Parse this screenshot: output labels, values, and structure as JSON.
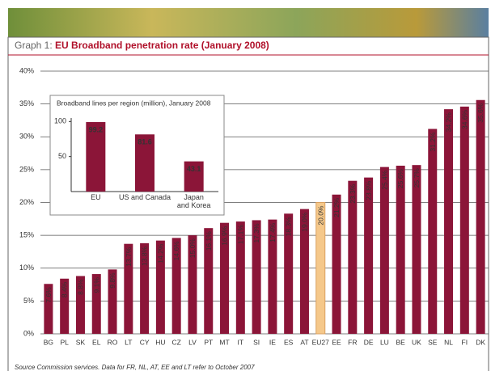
{
  "chart_data": [
    {
      "type": "bar",
      "label": "Graph 1:",
      "title": "EU Broadband penetration rate (January 2008)",
      "source": "Source Commission services. Data for FR, NL, AT, EE and LT refer to October 2007",
      "categories": [
        "BG",
        "PL",
        "SK",
        "EL",
        "RO",
        "LT",
        "CY",
        "HU",
        "CZ",
        "LV",
        "PT",
        "MT",
        "IT",
        "SI",
        "IE",
        "ES",
        "AT",
        "EU27",
        "EE",
        "FR",
        "DE",
        "LU",
        "BE",
        "UK",
        "SE",
        "NL",
        "FI",
        "DK"
      ],
      "values": [
        7.6,
        8.4,
        8.8,
        9.1,
        9.8,
        13.7,
        13.8,
        14.2,
        14.6,
        15.0,
        16.1,
        16.9,
        17.1,
        17.3,
        17.4,
        18.3,
        19.0,
        20.0,
        21.2,
        23.3,
        23.8,
        25.4,
        25.6,
        25.7,
        31.2,
        34.2,
        34.6,
        35.6
      ],
      "value_labels": [
        "7.6%",
        "8.4%",
        "8.8%",
        "9.1%",
        "9.8%",
        "13.7%",
        "13.8%",
        "14.2%",
        "14.6%",
        "15.0%",
        "16.1%",
        "16.9%",
        "17.1%",
        "17.3%",
        "17.4%",
        "18.3%",
        "19.0%",
        "20.0%",
        "21.2%",
        "23.3%",
        "23.8%",
        "25.4%",
        "25.6%",
        "25.7%",
        "31.2%",
        "34.2%",
        "34.6%",
        "35.6%"
      ],
      "colors": [
        "#8b1538",
        "#8b1538",
        "#8b1538",
        "#8b1538",
        "#8b1538",
        "#8b1538",
        "#8b1538",
        "#8b1538",
        "#8b1538",
        "#8b1538",
        "#8b1538",
        "#8b1538",
        "#8b1538",
        "#8b1538",
        "#8b1538",
        "#8b1538",
        "#8b1538",
        "#f5c88a",
        "#8b1538",
        "#8b1538",
        "#8b1538",
        "#8b1538",
        "#8b1538",
        "#8b1538",
        "#8b1538",
        "#8b1538",
        "#8b1538",
        "#8b1538"
      ],
      "ylim": [
        0,
        40
      ],
      "yticks": [
        {
          "value": 0,
          "label": "0%"
        },
        {
          "value": 5,
          "label": "5%"
        },
        {
          "value": 10,
          "label": "10%"
        },
        {
          "value": 15,
          "label": "15%"
        },
        {
          "value": 20,
          "label": "20%"
        },
        {
          "value": 25,
          "label": "25%"
        },
        {
          "value": 30,
          "label": "30%"
        },
        {
          "value": 35,
          "label": "35%"
        },
        {
          "value": 40,
          "label": "40%"
        }
      ],
      "grid": true
    },
    {
      "type": "bar",
      "title": "Broadband lines per region (million), January 2008",
      "categories": [
        "EU",
        "US and Canada",
        "Japan\nand Korea"
      ],
      "values": [
        99.2,
        81.6,
        43.1
      ],
      "color": "#8b1538",
      "ylim": [
        0,
        105
      ],
      "yticks": [
        50,
        100
      ]
    }
  ]
}
